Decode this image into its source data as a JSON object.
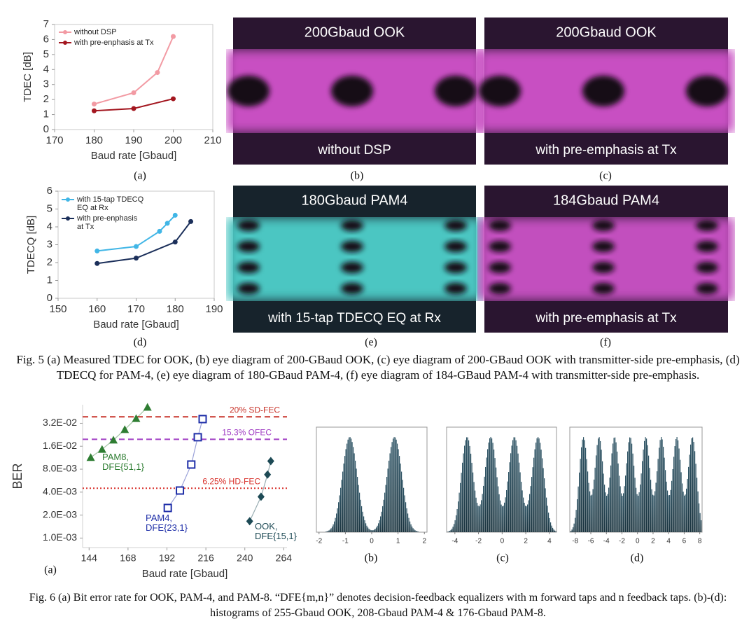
{
  "chart_data": [
    {
      "type": "line",
      "xlabel": "Baud rate [Gbaud]",
      "ylabel": "TDEC [dB]",
      "xlim": [
        170,
        210
      ],
      "xticks": [
        170,
        180,
        190,
        200,
        210
      ],
      "ylim": [
        0,
        7
      ],
      "yticks": [
        0,
        1,
        2,
        3,
        4,
        5,
        6,
        7
      ],
      "legend": "upper left",
      "series": [
        {
          "name": "without DSP",
          "color": "#f29aa3",
          "x": [
            180,
            190,
            196,
            200
          ],
          "values": [
            1.7,
            2.45,
            3.8,
            6.2
          ]
        },
        {
          "name": "with pre-enphasis at Tx",
          "color": "#a3161f",
          "x": [
            180,
            190,
            200
          ],
          "values": [
            1.25,
            1.4,
            2.05
          ]
        }
      ]
    },
    {
      "type": "line",
      "xlabel": "Baud rate [Gbaud]",
      "ylabel": "TDECQ [dB]",
      "xlim": [
        150,
        190
      ],
      "xticks": [
        150,
        160,
        170,
        180,
        190
      ],
      "ylim": [
        0,
        6
      ],
      "yticks": [
        0,
        1,
        2,
        3,
        4,
        5,
        6
      ],
      "legend": "upper left",
      "series": [
        {
          "name": "with 15-tap TDECQ EQ at Rx",
          "color": "#41b6e6",
          "x": [
            160,
            170,
            176,
            178,
            180
          ],
          "values": [
            2.65,
            2.9,
            3.75,
            4.2,
            4.65
          ]
        },
        {
          "name": "with pre-enphasis at Tx",
          "color": "#1b2f5a",
          "x": [
            160,
            170,
            180,
            184
          ],
          "values": [
            1.95,
            2.25,
            3.15,
            4.3
          ]
        }
      ]
    },
    {
      "type": "scatter",
      "xlabel": "Baud rate [Gbaud]",
      "ylabel": "BER",
      "ylog": true,
      "xlim": [
        140,
        266
      ],
      "xticks": [
        144,
        168,
        192,
        216,
        240,
        264
      ],
      "ylim": [
        0.00075,
        0.056
      ],
      "yticks": [
        {
          "value": 0.001,
          "label": "1.0E-03"
        },
        {
          "value": 0.002,
          "label": "2.0E-03"
        },
        {
          "value": 0.004,
          "label": "4.0E-03"
        },
        {
          "value": 0.008,
          "label": "8.0E-03"
        },
        {
          "value": 0.016,
          "label": "1.6E-02"
        },
        {
          "value": 0.032,
          "label": "3.2E-02"
        }
      ],
      "hlines": [
        {
          "label": "20% SD-FEC",
          "value": 0.0389,
          "color": "#c8352c",
          "style": "dashed"
        },
        {
          "label": "15.3% OFEC",
          "value": 0.0197,
          "color": "#a13fc4",
          "style": "dashed"
        },
        {
          "label": "6.25% HD-FEC",
          "value": 0.0045,
          "color": "#d8302a",
          "style": "dotted"
        }
      ],
      "series": [
        {
          "name": "PAM8, DFE{51,1}",
          "color": "#2e7d32",
          "marker": "triangle",
          "x": [
            145,
            152,
            159,
            166,
            173,
            180
          ],
          "values": [
            0.0114,
            0.0146,
            0.0193,
            0.0265,
            0.037,
            0.052
          ]
        },
        {
          "name": "PAM4, DFE{23,1}",
          "color": "#1f2fa8",
          "marker": "square",
          "x": [
            192.5,
            200,
            207,
            211,
            214
          ],
          "values": [
            0.00248,
            0.0042,
            0.0092,
            0.021,
            0.0363
          ]
        },
        {
          "name": "OOK, DFE{15,1}",
          "color": "#1d4a55",
          "marker": "diamond",
          "x": [
            243,
            250,
            254,
            256
          ],
          "values": [
            0.00166,
            0.00348,
            0.0068,
            0.0102
          ]
        }
      ]
    },
    {
      "type": "histogram",
      "xlim": [
        -2.1,
        2.1
      ],
      "xticks": [
        -2,
        -1,
        0,
        1,
        2
      ]
    },
    {
      "type": "histogram",
      "xlim": [
        -4.7,
        4.6
      ],
      "xticks": [
        -4,
        -2,
        0,
        2,
        4
      ]
    },
    {
      "type": "histogram",
      "xlim": [
        -8.7,
        8.3
      ],
      "xticks": [
        -8,
        -6,
        -4,
        -2,
        0,
        2,
        4,
        6,
        8
      ]
    }
  ],
  "figure5": {
    "panel_labels": [
      "(a)",
      "(b)",
      "(c)",
      "(d)",
      "(e)",
      "(f)"
    ],
    "eyes": [
      {
        "title": "200Gbaud OOK",
        "subtitle": "without DSP"
      },
      {
        "title": "200Gbaud OOK",
        "subtitle": "with pre-emphasis at Tx"
      },
      {
        "title": "180Gbaud PAM4",
        "subtitle": "with 15-tap TDECQ EQ at Rx"
      },
      {
        "title": "184Gbaud PAM4",
        "subtitle": "with pre-emphasis at Tx"
      }
    ],
    "caption": "Fig. 5 (a) Measured TDEC for OOK, (b) eye diagram of 200-GBaud OOK, (c) eye diagram of 200-GBaud OOK with transmitter-side pre-emphasis, (d) TDECQ for PAM-4, (e) eye diagram of 180-GBaud PAM-4, (f) eye diagram of 184-GBaud PAM-4 with transmitter-side pre-emphasis."
  },
  "figure6": {
    "panel_labels": [
      "(a)",
      "(b)",
      "(c)",
      "(d)"
    ],
    "caption": "Fig. 6  (a) Bit error rate for OOK, PAM-4, and PAM-8. “DFE{m,n}” denotes decision-feedback equalizers with m forward taps and n feedback taps. (b)-(d): histograms of 255-Gbaud OOK, 208-Gbaud PAM-4 & 176-Gbaud PAM-8."
  }
}
